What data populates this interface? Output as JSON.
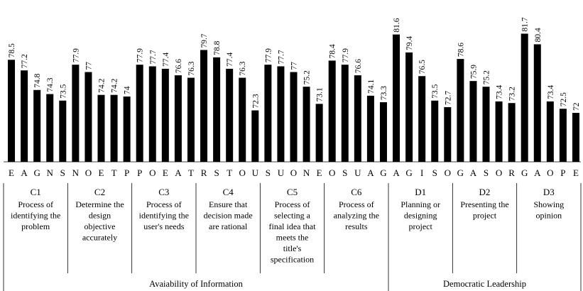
{
  "chart_data": {
    "type": "bar",
    "color": "#000000",
    "ylim": [
      66,
      82
    ],
    "sections": [
      {
        "label": "Avaiability of Information",
        "groups": [
          {
            "name": "C1",
            "description": [
              "Process of",
              "identifying the",
              "problem"
            ],
            "categories": [
              "E",
              "A",
              "G",
              "N",
              "S"
            ],
            "values": [
              78.5,
              77.2,
              74.8,
              74.3,
              73.5
            ]
          },
          {
            "name": "C2",
            "description": [
              "Determine the",
              "design",
              "objective",
              "accurately"
            ],
            "categories": [
              "N",
              "O",
              "E",
              "T",
              "P"
            ],
            "values": [
              77.9,
              77.0,
              74.2,
              74.2,
              74.0
            ]
          },
          {
            "name": "C3",
            "description": [
              "Process of",
              "identifying the",
              "user's needs"
            ],
            "categories": [
              "P",
              "O",
              "E",
              "A",
              "T"
            ],
            "values": [
              77.9,
              77.7,
              77.4,
              76.6,
              76.3
            ]
          },
          {
            "name": "C4",
            "description": [
              "Ensure that",
              "decision made",
              "are rational"
            ],
            "categories": [
              "R",
              "S",
              "T",
              "O",
              "U"
            ],
            "values": [
              79.7,
              78.8,
              77.4,
              76.3,
              72.3
            ]
          },
          {
            "name": "C5",
            "description": [
              "Process of",
              "selecting a",
              "final idea that",
              "meets the",
              "title's",
              "specification"
            ],
            "categories": [
              "S",
              "U",
              "O",
              "N",
              "E"
            ],
            "values": [
              77.9,
              77.7,
              77.0,
              75.2,
              73.1
            ]
          },
          {
            "name": "C6",
            "description": [
              "Process of",
              "analyzing the",
              "results"
            ],
            "categories": [
              "O",
              "S",
              "U",
              "A",
              "G"
            ],
            "values": [
              78.4,
              77.9,
              76.6,
              74.1,
              73.3
            ]
          }
        ]
      },
      {
        "label": "Democratic Leadership",
        "groups": [
          {
            "name": "D1",
            "description": [
              "Planning or",
              "designing",
              "project"
            ],
            "categories": [
              "A",
              "G",
              "I",
              "S",
              "O"
            ],
            "values": [
              81.6,
              79.4,
              76.5,
              73.5,
              72.7
            ]
          },
          {
            "name": "D2",
            "description": [
              "Presenting the",
              "project"
            ],
            "categories": [
              "G",
              "A",
              "S",
              "O",
              "R"
            ],
            "values": [
              78.6,
              75.9,
              75.2,
              73.4,
              73.2
            ]
          },
          {
            "name": "D3",
            "description": [
              "Showing",
              "opinion"
            ],
            "categories": [
              "G",
              "A",
              "O",
              "P",
              "E"
            ],
            "values": [
              81.7,
              80.4,
              73.4,
              72.5,
              72.0
            ]
          }
        ]
      }
    ]
  }
}
